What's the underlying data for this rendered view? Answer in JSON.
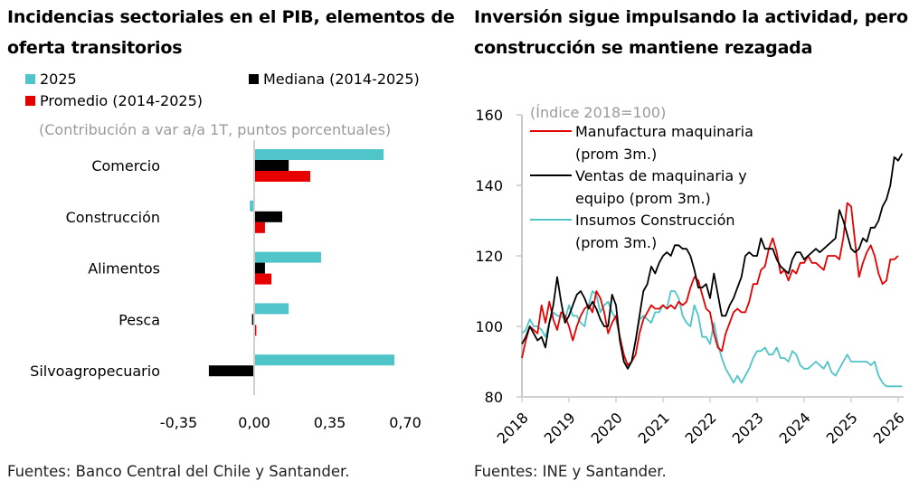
{
  "left": {
    "title": "Incidencias sectoriales en el PIB, elementos de oferta transitorios",
    "subtitle": "(Contribución a var a/a 1T, puntos porcentuales)",
    "source": "Fuentes: Banco Central del Chile y Santander."
  },
  "right": {
    "title": "Inversión sigue impulsando la actividad, pero construcción se mantiene rezagada",
    "subtitle": "(Índice 2018=100)",
    "source": "Fuentes: INE y Santander."
  },
  "colors": {
    "teal": "#4fc4c9",
    "black": "#000000",
    "red": "#e60000",
    "axis": "#d0d0d0"
  },
  "chart_data": [
    {
      "type": "bar",
      "orientation": "horizontal",
      "title": "Incidencias sectoriales en el PIB, elementos de oferta transitorios",
      "subtitle": "(Contribución a var a/a 1T, puntos porcentuales)",
      "categories": [
        "Comercio",
        "Construcción",
        "Alimentos",
        "Pesca",
        "Silvoagropecuario"
      ],
      "series": [
        {
          "name": "2025",
          "color": "#4fc4c9",
          "values": [
            0.6,
            -0.02,
            0.31,
            0.16,
            0.65
          ]
        },
        {
          "name": "Mediana (2014-2025)",
          "color": "#000000",
          "values": [
            0.16,
            0.13,
            0.05,
            -0.01,
            -0.21
          ]
        },
        {
          "name": "Promedio (2014-2025)",
          "color": "#e60000",
          "values": [
            0.26,
            0.05,
            0.08,
            0.01,
            0.0
          ]
        }
      ],
      "xticks": [
        "-0,35",
        "0,00",
        "0,35",
        "0,70"
      ],
      "xtick_values": [
        -0.35,
        0,
        0.35,
        0.7
      ],
      "xlim": [
        -0.35,
        0.7
      ],
      "legend_position": "top",
      "grid": false
    },
    {
      "type": "line",
      "title": "Inversión sigue impulsando la actividad, pero construcción se mantiene rezagada",
      "subtitle": "(Índice 2018=100)",
      "x_start": "2018-01",
      "x_frequency": "monthly",
      "xticks": [
        "2018",
        "2019",
        "2020",
        "2021",
        "2022",
        "2023",
        "2024",
        "2025",
        "2026"
      ],
      "yticks": [
        80,
        100,
        120,
        140,
        160
      ],
      "ylim": [
        80,
        160
      ],
      "legend_position": "top-left",
      "grid": false,
      "series": [
        {
          "name": "Manufactura maquinaria (prom 3m.)",
          "color": "#e60000",
          "values": [
            91,
            96,
            100,
            99,
            98,
            106,
            101,
            107,
            102,
            99,
            104,
            103,
            100,
            96,
            100,
            103,
            105,
            106,
            104,
            110,
            108,
            104,
            98,
            101,
            103,
            97,
            92,
            89,
            90,
            92,
            98,
            102,
            104,
            106,
            105,
            105,
            106,
            105,
            106,
            105,
            107,
            106,
            107,
            111,
            114,
            113,
            109,
            105,
            104,
            98,
            94,
            93,
            98,
            101,
            104,
            105,
            104,
            104,
            107,
            112,
            112,
            116,
            117,
            122,
            125,
            121,
            115,
            116,
            113,
            116,
            115,
            118,
            118,
            120,
            118,
            118,
            117,
            116,
            120,
            120,
            120,
            119,
            125,
            135,
            134,
            124,
            114,
            118,
            121,
            123,
            120,
            115,
            112,
            113,
            119,
            119,
            120
          ]
        },
        {
          "name": "Ventas de maquinaria y equipo (prom 3m.)",
          "color": "#000000",
          "values": [
            95,
            97,
            100,
            98,
            96,
            97,
            94,
            101,
            106,
            114,
            107,
            101,
            103,
            106,
            109,
            110,
            108,
            105,
            107,
            105,
            102,
            100,
            100,
            109,
            106,
            96,
            90,
            88,
            90,
            96,
            103,
            110,
            112,
            117,
            115,
            118,
            120,
            121,
            120,
            123,
            123,
            122,
            122,
            120,
            116,
            111,
            111,
            112,
            108,
            115,
            109,
            103,
            103,
            106,
            108,
            111,
            114,
            120,
            121,
            120,
            120,
            125,
            122,
            122,
            122,
            119,
            117,
            116,
            115,
            119,
            121,
            121,
            119,
            120,
            121,
            122,
            121,
            122,
            123,
            124,
            125,
            133,
            130,
            126,
            122,
            121,
            122,
            125,
            124,
            128,
            128,
            130,
            134,
            136,
            140,
            148,
            147,
            149
          ]
        },
        {
          "name": "Insumos Construcción (prom 3m.)",
          "color": "#4fc4c9",
          "values": [
            98,
            99,
            102,
            100,
            100,
            99,
            97,
            101,
            104,
            103,
            103,
            102,
            106,
            103,
            103,
            101,
            100,
            106,
            110,
            109,
            104,
            106,
            107,
            104,
            102,
            97,
            92,
            88,
            90,
            96,
            102,
            103,
            102,
            101,
            104,
            104,
            106,
            105,
            110,
            110,
            108,
            103,
            101,
            100,
            106,
            103,
            97,
            97,
            95,
            101,
            95,
            91,
            88,
            86,
            84,
            86,
            84,
            86,
            88,
            91,
            93,
            93,
            94,
            92,
            92,
            94,
            91,
            91,
            90,
            93,
            92,
            89,
            88,
            88,
            89,
            90,
            89,
            88,
            90,
            87,
            86,
            88,
            90,
            92,
            90,
            90,
            90,
            90,
            90,
            89,
            90,
            86,
            84,
            83,
            83,
            83,
            83,
            83
          ]
        }
      ]
    }
  ],
  "left_legend": [
    {
      "label": "2025",
      "color": "#4fc4c9"
    },
    {
      "label": "Mediana (2014-2025)",
      "color": "#000000"
    },
    {
      "label": "Promedio (2014-2025)",
      "color": "#e60000"
    }
  ],
  "right_legend": [
    {
      "label1": "Manufactura maquinaria",
      "label2": "(prom 3m.)",
      "color": "#e60000"
    },
    {
      "label1": "Ventas de maquinaria y",
      "label2": "equipo (prom 3m.)",
      "color": "#000000"
    },
    {
      "label1": "Insumos Construcción",
      "label2": "(prom 3m.)",
      "color": "#4fc4c9"
    }
  ]
}
